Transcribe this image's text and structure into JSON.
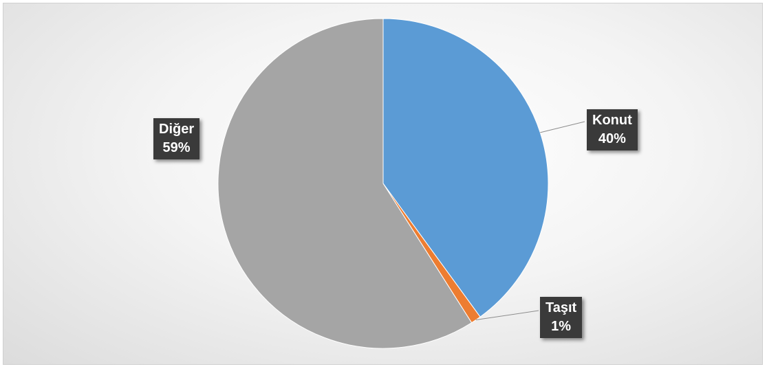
{
  "chart_data": {
    "type": "pie",
    "title": "",
    "slices": [
      {
        "label": "Konut",
        "value": 40,
        "display": "40%",
        "color": "#5b9bd5"
      },
      {
        "label": "Taşıt",
        "value": 1,
        "display": "1%",
        "color": "#ed7d31"
      },
      {
        "label": "Diğer",
        "value": 59,
        "display": "59%",
        "color": "#a5a5a5"
      }
    ],
    "start_angle_deg": 0,
    "direction": "clockwise",
    "legend": "none",
    "data_labels": "callout-outside"
  }
}
